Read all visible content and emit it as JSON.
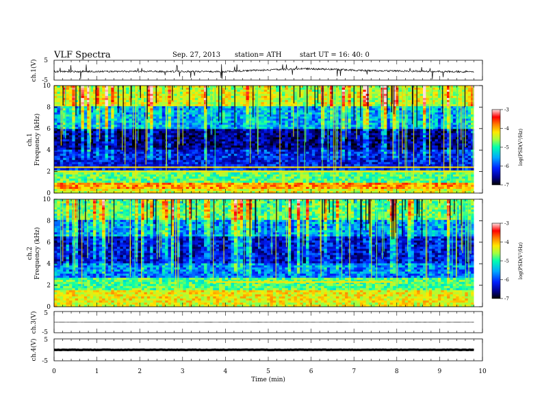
{
  "header": {
    "title": "VLF  Spectra",
    "date": "Sep. 27, 2013",
    "station": "station= ATH",
    "start": "start  UT  =    16: 40: 0"
  },
  "colors": {
    "background": "#ffffff",
    "axes": "#000000",
    "colormap": [
      "#000000",
      "#000090",
      "#0020ff",
      "#00a8ff",
      "#00ffb0",
      "#a0ff40",
      "#ffe800",
      "#ff8000",
      "#ff0000",
      "#ffe0e0"
    ]
  },
  "chart_data": [
    {
      "type": "line",
      "panel": "ch1-waveform",
      "ylabel": "ch.1(V)",
      "xlim": [
        0,
        10
      ],
      "ylim": [
        -5,
        5
      ],
      "yticks": [
        "5",
        "-5"
      ],
      "data_end_min": 9.8,
      "series": [
        {
          "x": [
            0,
            2,
            4,
            5.8,
            7.5,
            9.8
          ],
          "y": [
            -0.7,
            -0.6,
            -0.7,
            0.8,
            -0.3,
            -0.8
          ]
        }
      ]
    },
    {
      "type": "heatmap",
      "panel": "ch1-spectrogram",
      "ylabel": "ch.1\nFrequency  (kHz)",
      "xlim": [
        0,
        10
      ],
      "ylim": [
        0,
        10
      ],
      "yticks": [
        "0",
        "2",
        "4",
        "6",
        "8",
        "10"
      ],
      "data_end_min": 9.8,
      "colorbar": {
        "label": "log(PSD(V²/Hz)",
        "range": [
          -7,
          -3
        ],
        "ticks": [
          "-3",
          "-4",
          "-5",
          "-6",
          "-7"
        ]
      },
      "bands": [
        {
          "from_khz": 0,
          "to_khz": 0.4,
          "log_psd": -4.5
        },
        {
          "from_khz": 0.4,
          "to_khz": 1.0,
          "log_psd": -4.0
        },
        {
          "from_khz": 1.0,
          "to_khz": 2.2,
          "log_psd": -5.0
        },
        {
          "from_khz": 2.2,
          "to_khz": 4.0,
          "log_psd": -6.2
        },
        {
          "from_khz": 4.0,
          "to_khz": 6.0,
          "log_psd": -6.6
        },
        {
          "from_khz": 6.0,
          "to_khz": 8.0,
          "log_psd": -5.6
        },
        {
          "from_khz": 8.0,
          "to_khz": 10.0,
          "log_psd": -4.6
        }
      ],
      "tone_khz": [
        2.0,
        2.4
      ]
    },
    {
      "type": "heatmap",
      "panel": "ch2-spectrogram",
      "ylabel": "ch.2\nFrequency  (kHz)",
      "xlim": [
        0,
        10
      ],
      "ylim": [
        0,
        10
      ],
      "yticks": [
        "0",
        "2",
        "4",
        "6",
        "8",
        "10"
      ],
      "data_end_min": 9.8,
      "colorbar": {
        "label": "log(PSD(V²/Hz)",
        "range": [
          -7,
          -3
        ],
        "ticks": [
          "-3",
          "-4",
          "-5",
          "-6",
          "-7"
        ]
      },
      "bands": [
        {
          "from_khz": 0,
          "to_khz": 0.4,
          "log_psd": -4.5
        },
        {
          "from_khz": 0.4,
          "to_khz": 1.5,
          "log_psd": -4.4
        },
        {
          "from_khz": 1.5,
          "to_khz": 2.6,
          "log_psd": -5.0
        },
        {
          "from_khz": 2.6,
          "to_khz": 4.0,
          "log_psd": -5.8
        },
        {
          "from_khz": 4.0,
          "to_khz": 6.5,
          "log_psd": -6.3
        },
        {
          "from_khz": 6.5,
          "to_khz": 8.0,
          "log_psd": -5.7
        },
        {
          "from_khz": 8.0,
          "to_khz": 10.0,
          "log_psd": -5.0
        }
      ],
      "tone_khz": [
        2.3
      ],
      "tone_span_min": [
        3.6,
        7.9
      ]
    },
    {
      "type": "line",
      "panel": "ch3-waveform",
      "ylabel": "ch.3(V)",
      "xlim": [
        0,
        10
      ],
      "ylim": [
        -5,
        5
      ],
      "yticks": [
        "5",
        "-5"
      ],
      "data_end_min": 9.8,
      "series": [
        {
          "x": [
            0,
            9.8
          ],
          "y": [
            0,
            0
          ]
        }
      ]
    },
    {
      "type": "line",
      "panel": "ch4-waveform",
      "ylabel": "ch.4(V)",
      "xlim": [
        0,
        10
      ],
      "ylim": [
        -5,
        5
      ],
      "yticks": [
        "5",
        "-5"
      ],
      "data_end_min": 9.8,
      "series": [
        {
          "x": [
            0,
            9.8
          ],
          "y": [
            0,
            0
          ]
        }
      ]
    }
  ],
  "xaxis": {
    "label": "Time  (min)",
    "ticks": [
      "0",
      "1",
      "2",
      "3",
      "4",
      "5",
      "6",
      "7",
      "8",
      "9",
      "10"
    ]
  }
}
